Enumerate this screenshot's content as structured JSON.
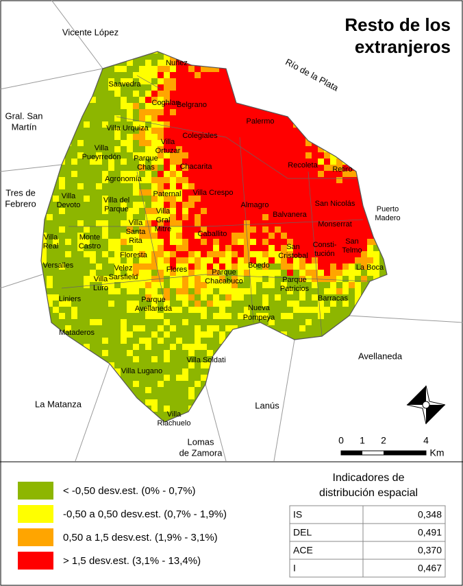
{
  "title": [
    "Resto de los",
    "extranjeros"
  ],
  "places": [
    {
      "label": [
        "Vicente López"
      ]
    },
    {
      "label": [
        "Gral. San",
        "Martín"
      ]
    },
    {
      "label": [
        "Tres de",
        "Febrero"
      ]
    },
    {
      "label": [
        "La Matanza"
      ]
    },
    {
      "label": [
        "Lanús"
      ]
    },
    {
      "label": [
        "Lomas",
        "de Zamora"
      ]
    },
    {
      "label": [
        "Avellaneda"
      ]
    },
    {
      "label": [
        "Río de la Plata"
      ]
    },
    {
      "label": [
        "Nuñez"
      ]
    },
    {
      "label": [
        "Saavedra"
      ]
    },
    {
      "label": [
        "Coghlan"
      ]
    },
    {
      "label": [
        "Belgrano"
      ]
    },
    {
      "label": [
        "Villa Urquiza"
      ]
    },
    {
      "label": [
        "Palermo"
      ]
    },
    {
      "label": [
        "Colegiales"
      ]
    },
    {
      "label": [
        "Villa",
        "Pueyrredón"
      ]
    },
    {
      "label": [
        "Villa",
        "Ortuzar"
      ]
    },
    {
      "label": [
        "Parque",
        "Chas"
      ]
    },
    {
      "label": [
        "Chacarita"
      ]
    },
    {
      "label": [
        "Recoleta"
      ]
    },
    {
      "label": [
        "Retiro"
      ]
    },
    {
      "label": [
        "Agronomía"
      ]
    },
    {
      "label": [
        "Paternal"
      ]
    },
    {
      "label": [
        "Villa Crespo"
      ]
    },
    {
      "label": [
        "Villa",
        "Devoto"
      ]
    },
    {
      "label": [
        "Villa del",
        "Parque"
      ]
    },
    {
      "label": [
        "Villa",
        "Gral",
        "Mitre"
      ]
    },
    {
      "label": [
        "Almagro"
      ]
    },
    {
      "label": [
        "San Nicolás"
      ]
    },
    {
      "label": [
        "Puerto",
        "Madero"
      ]
    },
    {
      "label": [
        "Balvanera"
      ]
    },
    {
      "label": [
        "Monserrat"
      ]
    },
    {
      "label": [
        "Villa",
        "Real"
      ]
    },
    {
      "label": [
        "Monte",
        "Castro"
      ]
    },
    {
      "label": [
        "Villa",
        "Santa",
        "Rita"
      ]
    },
    {
      "label": [
        "Caballito"
      ]
    },
    {
      "label": [
        "San",
        "Cristobal"
      ]
    },
    {
      "label": [
        "Consti-",
        "tución"
      ]
    },
    {
      "label": [
        "San",
        "Telmo"
      ]
    },
    {
      "label": [
        "Floresta"
      ]
    },
    {
      "label": [
        "Versalles"
      ]
    },
    {
      "label": [
        "Velez",
        "Sarsfield"
      ]
    },
    {
      "label": [
        "Flores"
      ]
    },
    {
      "label": [
        "Boedo"
      ]
    },
    {
      "label": [
        "La Boca"
      ]
    },
    {
      "label": [
        "Villa",
        "Luro"
      ]
    },
    {
      "label": [
        "Parque",
        "Chacabuco"
      ]
    },
    {
      "label": [
        "Parque",
        "Patricios"
      ]
    },
    {
      "label": [
        "Liniers"
      ]
    },
    {
      "label": [
        "Parque",
        "Avellaneda"
      ]
    },
    {
      "label": [
        "Barracas"
      ]
    },
    {
      "label": [
        "Nueva",
        "Pompeya"
      ]
    },
    {
      "label": [
        "Mataderos"
      ]
    },
    {
      "label": [
        "Villa Soldati"
      ]
    },
    {
      "label": [
        "Villa Lugano"
      ]
    },
    {
      "label": [
        "Villa",
        "Riachuelo"
      ]
    }
  ],
  "scale": {
    "ticks": [
      0,
      1,
      2,
      4
    ],
    "unit": "Km"
  },
  "legend": [
    {
      "label": "< -0,50 desv.est. (0% - 0,7%)",
      "color": "#8db600"
    },
    {
      "label": "-0,50 a 0,50 desv.est. (0,7% - 1,9%)",
      "color": "#ffff00"
    },
    {
      "label": "0,50 a 1,5 desv.est. (1,9% - 3,1%)",
      "color": "#ffa500"
    },
    {
      "label": "> 1,5 desv.est. (3,1% - 13,4%)",
      "color": "#ff0000"
    }
  ],
  "indicators": {
    "title": [
      "Indicadores de",
      "distribución espacial"
    ],
    "rows": [
      [
        "IS",
        "0,348"
      ],
      [
        "DEL",
        "0,491"
      ],
      [
        "ACE",
        "0,370"
      ],
      [
        "I",
        "0,467"
      ]
    ]
  }
}
